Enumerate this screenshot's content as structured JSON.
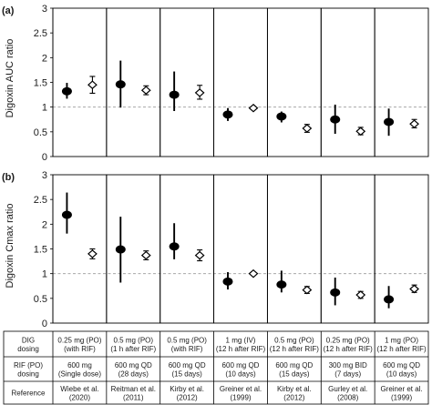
{
  "chart_data": [
    {
      "type": "scatter",
      "panel_label": "(a)",
      "ylabel": "Digoxin AUC ratio",
      "ylim": [
        0,
        3
      ],
      "yticks": [
        "0",
        "0.5",
        "1",
        "1.5",
        "2",
        "2.5",
        "3"
      ],
      "reference_line": 1,
      "series": [
        {
          "marker": "filled-ellipse",
          "values": [
            1.32,
            1.46,
            1.25,
            0.85,
            0.81,
            0.75,
            0.7
          ],
          "error_low": [
            1.17,
            0.99,
            0.92,
            0.72,
            0.69,
            0.46,
            0.42
          ],
          "error_high": [
            1.49,
            1.94,
            1.72,
            0.98,
            0.91,
            1.05,
            0.97
          ]
        },
        {
          "marker": "open-diamond",
          "values": [
            1.45,
            1.34,
            1.29,
            0.98,
            0.57,
            0.51,
            0.66
          ],
          "error_low": [
            1.28,
            1.25,
            1.16,
            0.96,
            0.49,
            0.44,
            0.58
          ],
          "error_high": [
            1.62,
            1.43,
            1.44,
            1.0,
            0.65,
            0.59,
            0.75
          ]
        }
      ]
    },
    {
      "type": "scatter",
      "panel_label": "(b)",
      "ylabel": "Digoxin Cmax ratio",
      "ylim": [
        0,
        3
      ],
      "yticks": [
        "0",
        "0.5",
        "1",
        "1.5",
        "2",
        "2.5",
        "3"
      ],
      "reference_line": 1,
      "series": [
        {
          "marker": "filled-ellipse",
          "values": [
            2.19,
            1.49,
            1.55,
            0.84,
            0.78,
            0.62,
            0.48
          ],
          "error_low": [
            1.81,
            0.82,
            1.29,
            0.68,
            0.62,
            0.36,
            0.3
          ],
          "error_high": [
            2.64,
            2.15,
            2.02,
            1.03,
            1.06,
            0.92,
            0.75
          ]
        },
        {
          "marker": "open-diamond",
          "values": [
            1.4,
            1.37,
            1.37,
            1.0,
            0.67,
            0.57,
            0.69
          ],
          "error_low": [
            1.3,
            1.28,
            1.26,
            0.98,
            0.6,
            0.5,
            0.62
          ],
          "error_high": [
            1.5,
            1.46,
            1.48,
            1.02,
            0.74,
            0.64,
            0.77
          ]
        }
      ]
    }
  ],
  "table": {
    "row_labels": [
      [
        "DIG",
        "dosing"
      ],
      [
        "RIF (PO)",
        "dosing"
      ],
      [
        "Reference"
      ]
    ],
    "columns": [
      {
        "dig": [
          "0.25 mg (PO)",
          "(with RIF)"
        ],
        "rif": [
          "600 mg",
          "(Single dose)"
        ],
        "ref": [
          "Wiebe et al.",
          "(2020)"
        ]
      },
      {
        "dig": [
          "0.5 mg (PO)",
          "(1 h after RIF)"
        ],
        "rif": [
          "600 mg QD",
          "(28 days)"
        ],
        "ref": [
          "Reitman et al.",
          "(2011)"
        ]
      },
      {
        "dig": [
          "0.5 mg (PO)",
          "(with RIF)"
        ],
        "rif": [
          "600 mg QD",
          "(15 days)"
        ],
        "ref": [
          "Kirby et al.",
          "(2012)"
        ]
      },
      {
        "dig": [
          "1 mg (IV)",
          "(12 h after RIF)"
        ],
        "rif": [
          "600 mg QD",
          "(10 days)"
        ],
        "ref": [
          "Greiner et al.",
          "(1999)"
        ]
      },
      {
        "dig": [
          "0.5 mg (PO)",
          "(12 h after RIF)"
        ],
        "rif": [
          "600 mg QD",
          "(15 days)"
        ],
        "ref": [
          "Kirby et al.",
          "(2012)"
        ]
      },
      {
        "dig": [
          "0.25 mg (PO)",
          "(12 h after RIF)"
        ],
        "rif": [
          "300 mg BID",
          "(7 days)"
        ],
        "ref": [
          "Gurley et al.",
          "(2008)"
        ]
      },
      {
        "dig": [
          "1 mg (PO)",
          "(12 h after RIF)"
        ],
        "rif": [
          "600 mg QD",
          "(10 days)"
        ],
        "ref": [
          "Greiner et al.",
          "(1999)"
        ]
      }
    ]
  }
}
